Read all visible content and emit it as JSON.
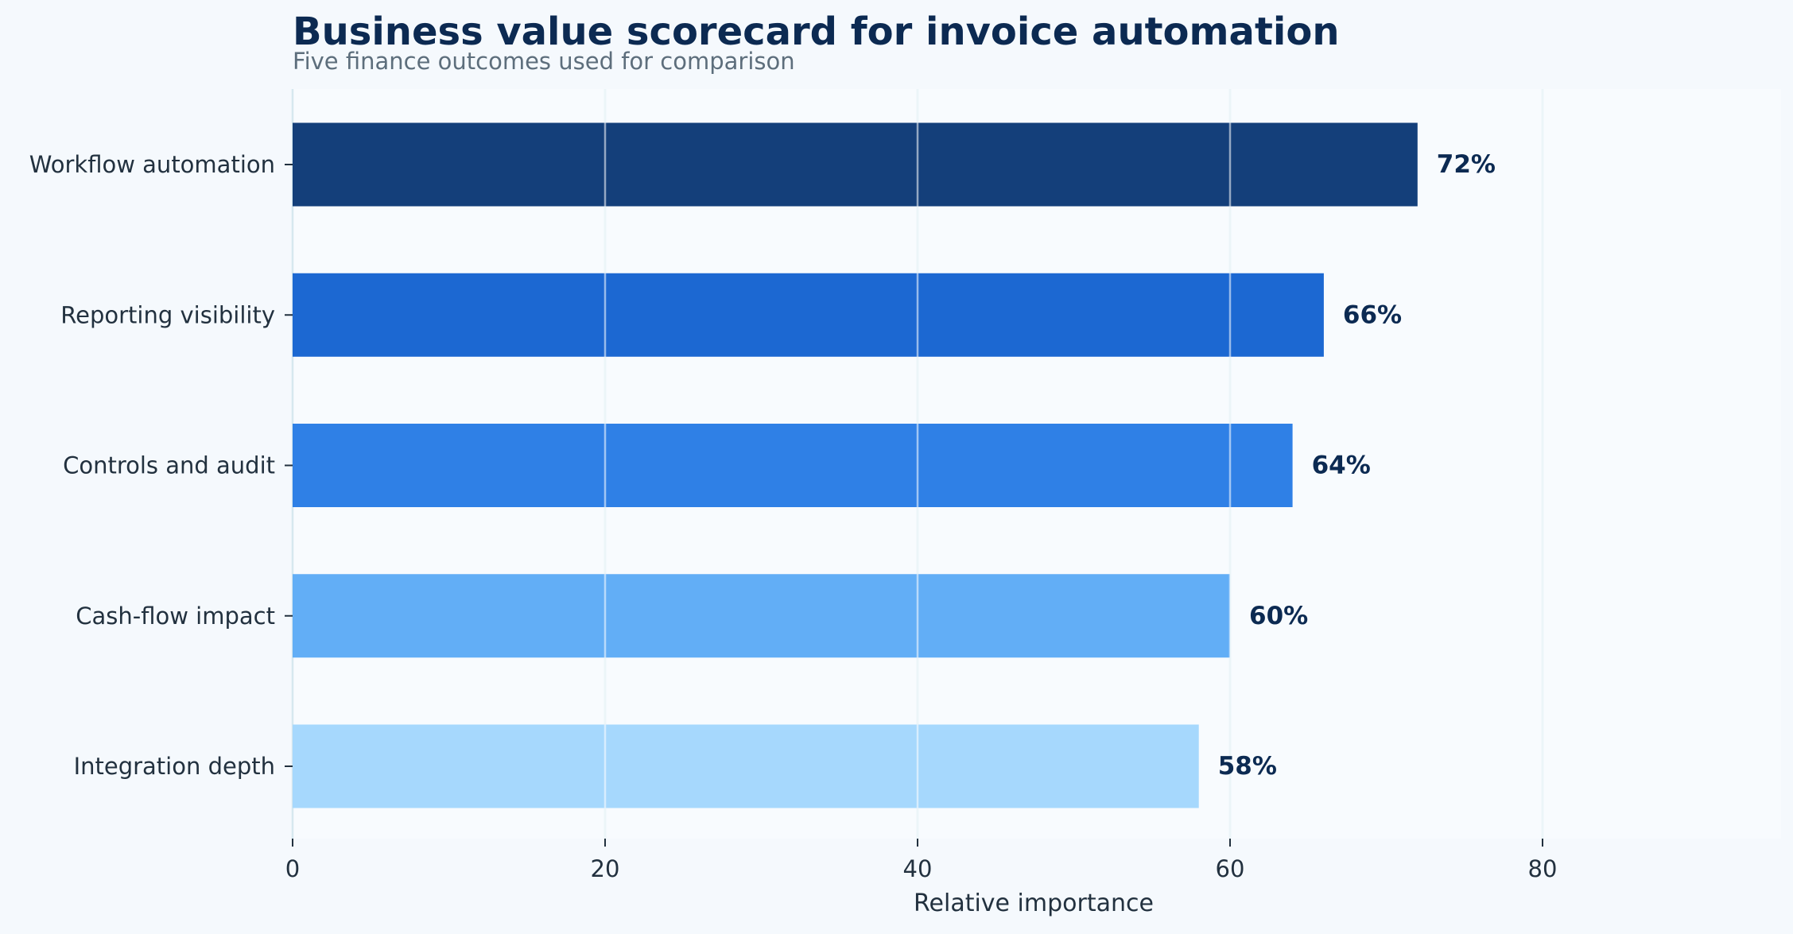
{
  "chart_data": {
    "type": "bar",
    "orientation": "horizontal",
    "title": "Business value scorecard for invoice automation",
    "subtitle": "Five finance outcomes used for comparison",
    "xlabel": "Relative importance",
    "ylabel": "",
    "categories": [
      "Workflow automation",
      "Reporting visibility",
      "Controls and audit",
      "Cash-flow impact",
      "Integration depth"
    ],
    "values": [
      72,
      66,
      64,
      60,
      58
    ],
    "value_labels": [
      "72%",
      "66%",
      "64%",
      "60%",
      "58%"
    ],
    "bar_colors": [
      "#143f7a",
      "#1c68d2",
      "#2f80e6",
      "#62aef6",
      "#a6d8fd"
    ],
    "xlim": [
      0,
      95
    ],
    "xticks": [
      0,
      20,
      40,
      60,
      80
    ],
    "xtick_labels": [
      "0",
      "20",
      "40",
      "60",
      "80"
    ],
    "grid": "vertical",
    "legend": "none"
  },
  "colors": {
    "background": "#f5f9fd",
    "plot_background": "#f8fbfe",
    "gridline": "#d6e8ef",
    "title": "#0c2a52",
    "subtitle": "#5d6e7c",
    "text": "#22313f"
  }
}
